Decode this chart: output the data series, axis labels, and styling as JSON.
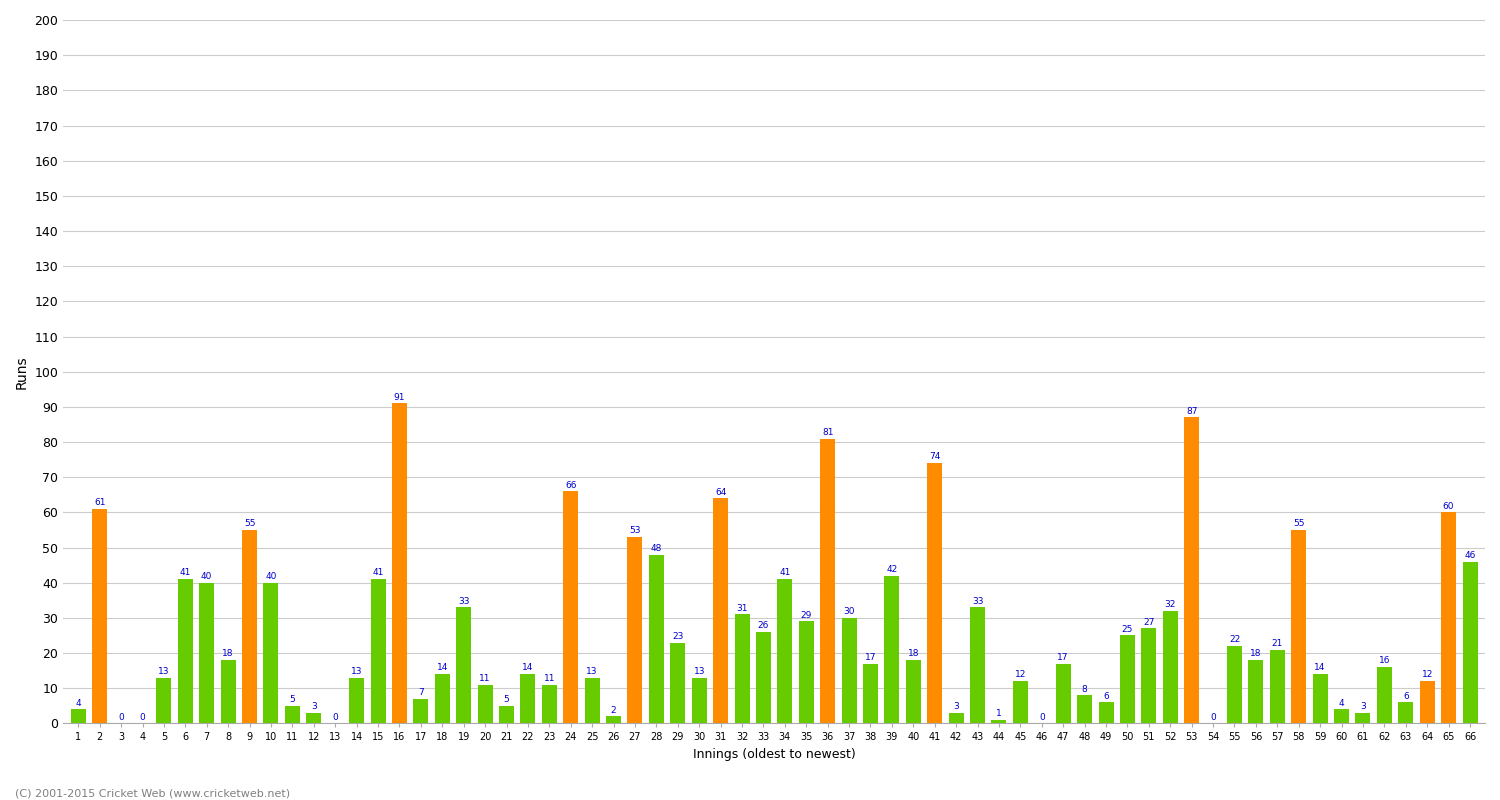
{
  "xlabel": "Innings (oldest to newest)",
  "ylabel": "Runs",
  "innings_labels": [
    "1",
    "2",
    "3",
    "4",
    "5",
    "6",
    "7",
    "8",
    "9",
    "10",
    "11",
    "12",
    "13",
    "14",
    "15",
    "16",
    "17",
    "18",
    "19",
    "20",
    "21",
    "22",
    "23",
    "24",
    "25",
    "26",
    "27",
    "28",
    "29",
    "30",
    "31",
    "32",
    "33",
    "34",
    "35",
    "36",
    "37",
    "38",
    "39",
    "40",
    "41",
    "42",
    "43",
    "44",
    "45",
    "46",
    "47",
    "48",
    "49",
    "50",
    "51",
    "52",
    "53",
    "54",
    "55",
    "56",
    "57",
    "58",
    "59",
    "60",
    "61",
    "62",
    "63",
    "64",
    "65",
    "66"
  ],
  "values": [
    4,
    61,
    0,
    0,
    13,
    41,
    40,
    18,
    55,
    40,
    5,
    3,
    0,
    13,
    41,
    91,
    7,
    14,
    33,
    11,
    5,
    14,
    11,
    66,
    13,
    2,
    53,
    48,
    23,
    13,
    64,
    31,
    26,
    41,
    29,
    81,
    30,
    17,
    42,
    18,
    74,
    3,
    33,
    1,
    12,
    0,
    17,
    8,
    6,
    25,
    27,
    32,
    87,
    0,
    22,
    18,
    21,
    55,
    14,
    4,
    3,
    16,
    6,
    12,
    60,
    46
  ],
  "bar_colors_orange_indices": [
    1,
    8,
    15,
    23,
    26,
    30,
    35,
    40,
    52,
    57,
    63,
    64
  ],
  "ylim": [
    0,
    200
  ],
  "ytick_step": 10,
  "background_color": "#ffffff",
  "grid_color": "#cccccc",
  "bar_color_orange": "#FF8C00",
  "bar_color_green": "#66CC00",
  "label_color": "#0000CD",
  "footer": "(C) 2001-2015 Cricket Web (www.cricketweb.net)"
}
